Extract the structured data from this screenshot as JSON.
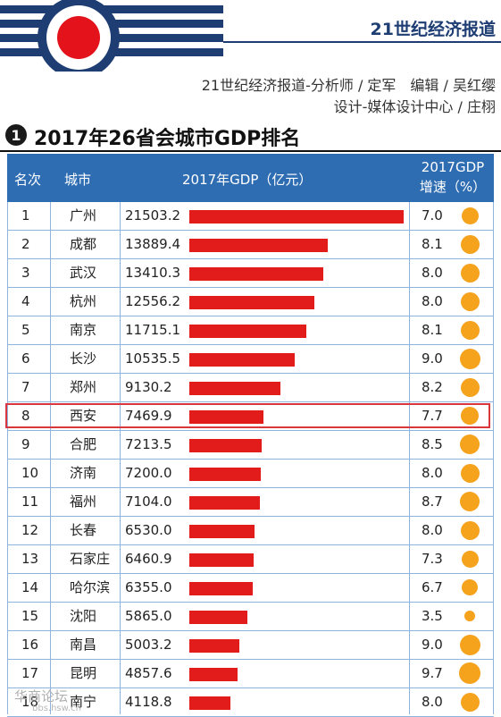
{
  "header": {
    "brand": "21世纪经济报道",
    "credit_line1": "21世纪经济报道-分析师 / 定军　编辑 / 吴红缨",
    "credit_line2": "设计-媒体设计中心 / 庄栩"
  },
  "section": {
    "number": "1",
    "title": "2017年26省会城市GDP排名"
  },
  "table": {
    "col_rank": "名次",
    "col_city": "城市",
    "col_gdp": "2017年GDP（亿元）",
    "col_growth_line1": "2017GDP",
    "col_growth_line2": "增速（%）"
  },
  "highlight_row": 8,
  "colors": {
    "bar": "#e21b1b",
    "dot": "#f5a21d",
    "header": "#2f6db3",
    "highlight": "#d9363e"
  },
  "watermark": "华商论坛",
  "watermark_sub": "bbs.hsw.cn",
  "chart_data": {
    "type": "table",
    "title": "2017年26省会城市GDP排名",
    "columns": [
      "名次",
      "城市",
      "2017年GDP（亿元）",
      "2017GDP增速（%）"
    ],
    "rows": [
      {
        "rank": "1",
        "city": "广州",
        "gdp": "21503.2",
        "growth": "7.0"
      },
      {
        "rank": "2",
        "city": "成都",
        "gdp": "13889.4",
        "growth": "8.1"
      },
      {
        "rank": "3",
        "city": "武汉",
        "gdp": "13410.3",
        "growth": "8.0"
      },
      {
        "rank": "4",
        "city": "杭州",
        "gdp": "12556.2",
        "growth": "8.0"
      },
      {
        "rank": "5",
        "city": "南京",
        "gdp": "11715.1",
        "growth": "8.1"
      },
      {
        "rank": "6",
        "city": "长沙",
        "gdp": "10535.5",
        "growth": "9.0"
      },
      {
        "rank": "7",
        "city": "郑州",
        "gdp": "9130.2",
        "growth": "8.2"
      },
      {
        "rank": "8",
        "city": "西安",
        "gdp": "7469.9",
        "growth": "7.7"
      },
      {
        "rank": "9",
        "city": "合肥",
        "gdp": "7213.5",
        "growth": "8.5"
      },
      {
        "rank": "10",
        "city": "济南",
        "gdp": "7200.0",
        "growth": "8.0"
      },
      {
        "rank": "11",
        "city": "福州",
        "gdp": "7104.0",
        "growth": "8.7"
      },
      {
        "rank": "12",
        "city": "长春",
        "gdp": "6530.0",
        "growth": "8.0"
      },
      {
        "rank": "13",
        "city": "石家庄",
        "gdp": "6460.9",
        "growth": "7.3"
      },
      {
        "rank": "14",
        "city": "哈尔滨",
        "gdp": "6355.0",
        "growth": "6.7"
      },
      {
        "rank": "15",
        "city": "沈阳",
        "gdp": "5865.0",
        "growth": "3.5"
      },
      {
        "rank": "16",
        "city": "南昌",
        "gdp": "5003.2",
        "growth": "9.0"
      },
      {
        "rank": "17",
        "city": "昆明",
        "gdp": "4857.6",
        "growth": "9.7"
      },
      {
        "rank": "18",
        "city": "南宁",
        "gdp": "4118.8",
        "growth": "8.0"
      }
    ]
  }
}
